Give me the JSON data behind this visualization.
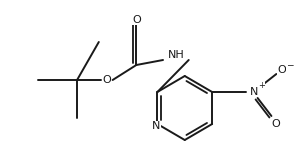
{
  "bg_color": "#ffffff",
  "line_color": "#1a1a1a",
  "figsize": [
    2.94,
    1.55
  ],
  "dpi": 100,
  "lw": 1.4,
  "font_size": 7.5,
  "xlim": [
    0,
    294
  ],
  "ylim": [
    0,
    155
  ]
}
